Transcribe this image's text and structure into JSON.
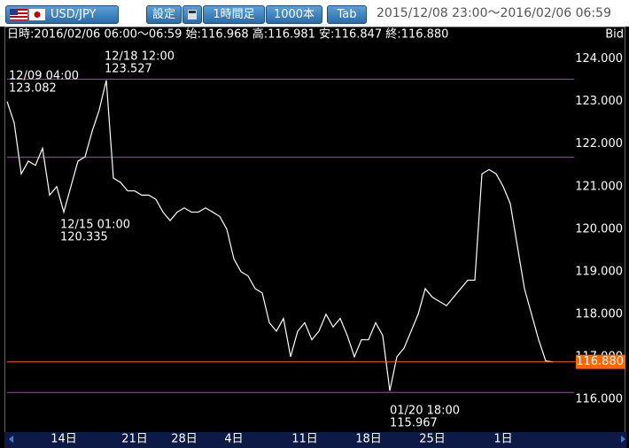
{
  "toolbar": {
    "pair": "USD/JPY",
    "buttons": [
      "設定",
      "1時間足",
      "1000本",
      "Tab"
    ],
    "range": "2015/12/08 23:00～2016/02/06 06:59"
  },
  "info": {
    "text": "日時:2016/02/06 06:00～06:59 始:116.968 高:116.981 安:116.847 終:116.880",
    "price_type": "Bid"
  },
  "chart_data": {
    "type": "line",
    "categories": [
      null,
      null,
      null,
      null,
      null,
      null,
      null,
      null,
      "14日",
      null,
      null,
      null,
      null,
      null,
      null,
      null,
      null,
      null,
      "21日",
      null,
      null,
      null,
      null,
      null,
      null,
      "28日",
      null,
      null,
      null,
      null,
      null,
      null,
      "4日",
      null,
      null,
      null,
      null,
      null,
      null,
      null,
      null,
      null,
      "11日",
      null,
      null,
      null,
      null,
      null,
      null,
      null,
      null,
      "18日",
      null,
      null,
      null,
      null,
      null,
      null,
      null,
      null,
      "25日",
      null,
      null,
      null,
      null,
      null,
      null,
      null,
      null,
      null,
      "1日",
      null,
      null,
      null,
      null,
      null,
      null,
      null,
      null,
      null
    ],
    "series": [
      {
        "color": "#ffffff",
        "values": [
          123.0,
          122.5,
          121.3,
          121.6,
          121.5,
          121.9,
          120.8,
          121.0,
          120.4,
          121.0,
          121.6,
          121.7,
          122.3,
          122.8,
          123.5,
          121.2,
          121.1,
          120.9,
          120.9,
          120.8,
          120.8,
          120.7,
          120.4,
          120.2,
          120.4,
          120.5,
          120.4,
          120.4,
          120.5,
          120.4,
          120.3,
          120.0,
          119.3,
          119.0,
          118.9,
          118.6,
          118.5,
          117.8,
          117.6,
          117.9,
          117.0,
          117.6,
          117.8,
          117.4,
          117.6,
          118.0,
          117.7,
          117.9,
          117.5,
          117.0,
          117.4,
          117.4,
          117.8,
          117.5,
          116.2,
          117.0,
          117.2,
          117.6,
          118.0,
          118.6,
          118.4,
          118.3,
          118.2,
          118.4,
          118.6,
          118.8,
          118.8,
          121.3,
          121.4,
          121.3,
          121.0,
          120.6,
          119.6,
          118.6,
          118.0,
          117.4,
          116.9,
          116.88,
          null,
          null
        ]
      }
    ],
    "ylim": [
      115.25,
      124.45
    ],
    "yticks": [
      {
        "value": 116,
        "label": "116.000"
      },
      {
        "value": 117,
        "label": "117.000"
      },
      {
        "value": 118,
        "label": "118.000"
      },
      {
        "value": 119,
        "label": "119.000"
      },
      {
        "value": 120,
        "label": "120.000"
      },
      {
        "value": 121,
        "label": "121.000"
      },
      {
        "value": 122,
        "label": "122.000"
      },
      {
        "value": 123,
        "label": "123.000"
      },
      {
        "value": 124,
        "label": "124.000"
      }
    ],
    "grid": false,
    "levels": [
      {
        "value": 123.527,
        "color": "#cc33cc"
      },
      {
        "value": 121.69,
        "color": "#cc33cc"
      },
      {
        "value": 116.16,
        "color": "#cc33cc"
      }
    ],
    "current": {
      "value": 116.88,
      "label": "116.880",
      "color": "#ff6600"
    },
    "annotations": [
      {
        "label": "12/09 04:00",
        "value": 123.082
      },
      {
        "label": "12/18 12:00",
        "value": 123.527
      },
      {
        "label": "12/15 01:00",
        "value": 120.335
      },
      {
        "label": "01/20 18:00",
        "value": 115.967
      }
    ]
  }
}
